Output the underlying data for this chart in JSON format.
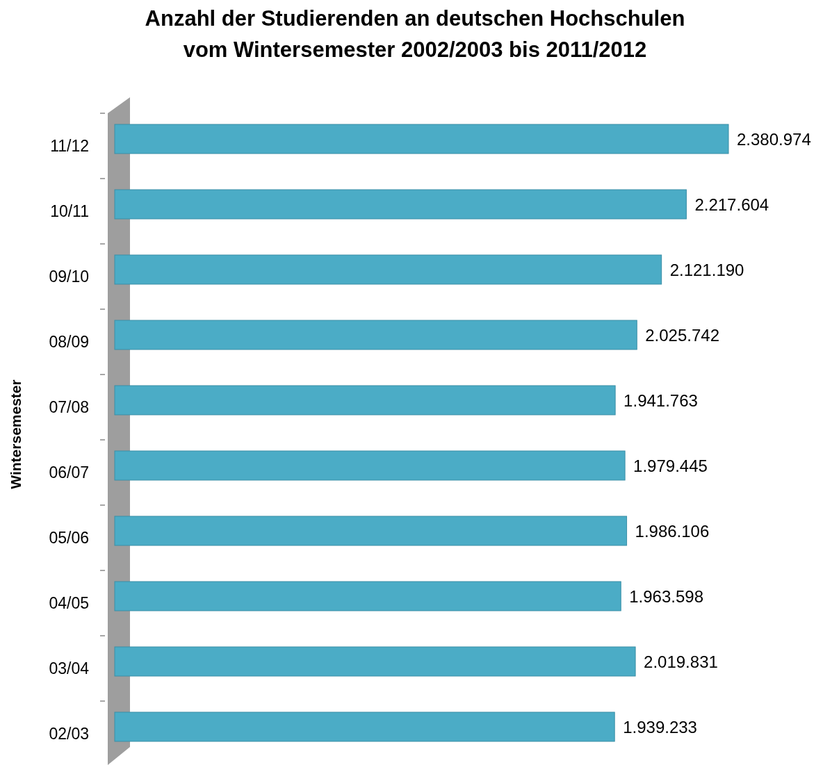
{
  "chart_data": {
    "type": "bar",
    "orientation": "horizontal",
    "title": "Anzahl der Studierenden an deutschen Hochschulen\nvom Wintersemester 2002/2003 bis 2011/2012",
    "ylabel": "Wintersemester",
    "categories": [
      "11/12",
      "10/11",
      "09/10",
      "08/09",
      "07/08",
      "06/07",
      "05/06",
      "04/05",
      "03/04",
      "02/03"
    ],
    "values": [
      2380974,
      2217604,
      2121190,
      2025742,
      1941763,
      1979445,
      1986106,
      1963598,
      2019831,
      1939233
    ],
    "value_labels": [
      "2.380.974",
      "2.217.604",
      "2.121.190",
      "2.025.742",
      "1.941.763",
      "1.979.445",
      "1.986.106",
      "1.963.598",
      "2.019.831",
      "1.939.233"
    ],
    "color": "#4bacc6"
  }
}
